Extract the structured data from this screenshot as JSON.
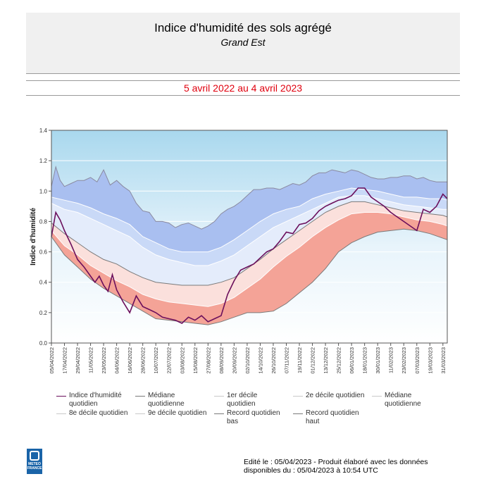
{
  "header": {
    "title": "Indice d'humidité des sols agrégé",
    "subtitle": "Grand Est"
  },
  "period": "5 avril 2022 au 4 avril 2023",
  "chart_data": {
    "type": "area",
    "ylabel": "Indice d'humidité",
    "ylim": [
      0.0,
      1.4
    ],
    "yticks": [
      "0.0",
      "0.2",
      "0.4",
      "0.6",
      "0.8",
      "1.0",
      "1.2",
      "1.4"
    ],
    "x_ticks": [
      "05/04/2022",
      "17/04/2022",
      "29/04/2022",
      "11/05/2022",
      "23/05/2022",
      "04/06/2022",
      "16/06/2022",
      "28/06/2022",
      "10/07/2022",
      "22/07/2022",
      "03/08/2022",
      "15/08/2022",
      "27/08/2022",
      "08/09/2022",
      "20/09/2022",
      "02/10/2022",
      "14/10/2022",
      "26/10/2022",
      "07/11/2022",
      "19/11/2022",
      "01/12/2022",
      "13/12/2022",
      "25/12/2022",
      "06/01/2023",
      "18/01/2023",
      "30/01/2023",
      "11/02/2023",
      "23/02/2023",
      "07/03/2023",
      "19/03/2023",
      "31/03/2023"
    ],
    "x_tick_days": [
      0,
      12,
      24,
      36,
      48,
      60,
      72,
      84,
      96,
      108,
      120,
      132,
      144,
      156,
      168,
      180,
      192,
      204,
      216,
      228,
      240,
      252,
      264,
      276,
      288,
      300,
      312,
      324,
      336,
      348,
      360
    ],
    "x_days_total": 364,
    "grid": true,
    "colors": {
      "record_high_band": "#a9bff0",
      "dec9_band": "#c9d9f7",
      "dec8_band": "#e4ecfb",
      "median_high_band": "#fbe0dc",
      "dec2_band": "#f8c6be",
      "record_low_band": "#f4a397",
      "current": "#6b0f5c",
      "stat_line": "#7a7a7a"
    },
    "series": [
      {
        "name": "Record quotidien haut",
        "x": [
          0,
          4,
          8,
          12,
          18,
          24,
          30,
          36,
          42,
          48,
          54,
          60,
          66,
          72,
          78,
          84,
          90,
          96,
          102,
          108,
          114,
          120,
          126,
          132,
          138,
          144,
          150,
          156,
          162,
          168,
          174,
          180,
          186,
          192,
          198,
          204,
          210,
          216,
          222,
          228,
          234,
          240,
          246,
          252,
          258,
          264,
          270,
          276,
          282,
          288,
          294,
          300,
          306,
          312,
          318,
          324,
          330,
          336,
          342,
          348,
          354,
          360,
          364
        ],
        "y": [
          1.03,
          1.16,
          1.07,
          1.03,
          1.05,
          1.07,
          1.07,
          1.09,
          1.06,
          1.14,
          1.04,
          1.07,
          1.03,
          1.0,
          0.92,
          0.87,
          0.86,
          0.8,
          0.8,
          0.79,
          0.76,
          0.78,
          0.79,
          0.77,
          0.75,
          0.77,
          0.8,
          0.85,
          0.88,
          0.9,
          0.93,
          0.97,
          1.01,
          1.01,
          1.02,
          1.02,
          1.01,
          1.03,
          1.05,
          1.04,
          1.06,
          1.1,
          1.12,
          1.12,
          1.14,
          1.13,
          1.12,
          1.14,
          1.13,
          1.11,
          1.09,
          1.08,
          1.08,
          1.09,
          1.09,
          1.1,
          1.1,
          1.08,
          1.09,
          1.07,
          1.06,
          1.06,
          1.06
        ]
      },
      {
        "name": "9e décile quotidien",
        "x": [
          0,
          12,
          24,
          36,
          48,
          60,
          72,
          84,
          96,
          108,
          120,
          132,
          144,
          156,
          168,
          180,
          192,
          204,
          216,
          228,
          240,
          252,
          264,
          276,
          288,
          300,
          312,
          324,
          336,
          348,
          360,
          364
        ],
        "y": [
          0.96,
          0.94,
          0.92,
          0.89,
          0.85,
          0.82,
          0.78,
          0.7,
          0.66,
          0.62,
          0.6,
          0.6,
          0.6,
          0.63,
          0.68,
          0.74,
          0.8,
          0.85,
          0.88,
          0.9,
          0.95,
          0.98,
          1.0,
          1.02,
          1.01,
          1.0,
          0.98,
          0.96,
          0.96,
          0.95,
          0.95,
          0.94
        ]
      },
      {
        "name": "8e décile quotidien",
        "x": [
          0,
          12,
          24,
          36,
          48,
          60,
          72,
          84,
          96,
          108,
          120,
          132,
          144,
          156,
          168,
          180,
          192,
          204,
          216,
          228,
          240,
          252,
          264,
          276,
          288,
          300,
          312,
          324,
          336,
          348,
          360,
          364
        ],
        "y": [
          0.92,
          0.88,
          0.86,
          0.82,
          0.78,
          0.74,
          0.7,
          0.63,
          0.58,
          0.55,
          0.53,
          0.51,
          0.51,
          0.54,
          0.58,
          0.64,
          0.7,
          0.76,
          0.8,
          0.84,
          0.88,
          0.92,
          0.96,
          0.97,
          0.97,
          0.95,
          0.93,
          0.91,
          0.9,
          0.89,
          0.88,
          0.88
        ]
      },
      {
        "name": "Médiane quotidienne",
        "x": [
          0,
          12,
          24,
          36,
          48,
          60,
          72,
          84,
          96,
          108,
          120,
          132,
          144,
          156,
          168,
          180,
          192,
          204,
          216,
          228,
          240,
          252,
          264,
          276,
          288,
          300,
          312,
          324,
          336,
          348,
          360,
          364
        ],
        "y": [
          0.79,
          0.72,
          0.66,
          0.6,
          0.55,
          0.52,
          0.47,
          0.43,
          0.4,
          0.39,
          0.38,
          0.38,
          0.38,
          0.4,
          0.43,
          0.49,
          0.55,
          0.62,
          0.68,
          0.74,
          0.8,
          0.86,
          0.9,
          0.93,
          0.93,
          0.91,
          0.89,
          0.87,
          0.86,
          0.85,
          0.84,
          0.83
        ]
      },
      {
        "name": "2e décile quotidien",
        "x": [
          0,
          12,
          24,
          36,
          48,
          60,
          72,
          84,
          96,
          108,
          120,
          132,
          144,
          156,
          168,
          180,
          192,
          204,
          216,
          228,
          240,
          252,
          264,
          276,
          288,
          300,
          312,
          324,
          336,
          348,
          360,
          364
        ],
        "y": [
          0.74,
          0.64,
          0.58,
          0.51,
          0.46,
          0.41,
          0.37,
          0.32,
          0.29,
          0.27,
          0.26,
          0.25,
          0.24,
          0.26,
          0.3,
          0.36,
          0.42,
          0.5,
          0.57,
          0.63,
          0.7,
          0.76,
          0.81,
          0.85,
          0.86,
          0.86,
          0.85,
          0.83,
          0.81,
          0.8,
          0.78,
          0.77
        ]
      },
      {
        "name": "Record quotidien bas",
        "x": [
          0,
          12,
          24,
          36,
          48,
          60,
          72,
          84,
          96,
          108,
          120,
          132,
          144,
          156,
          168,
          180,
          192,
          204,
          216,
          228,
          240,
          252,
          264,
          276,
          288,
          300,
          312,
          324,
          336,
          348,
          360,
          364
        ],
        "y": [
          0.7,
          0.58,
          0.5,
          0.42,
          0.36,
          0.31,
          0.26,
          0.21,
          0.16,
          0.15,
          0.14,
          0.13,
          0.12,
          0.14,
          0.17,
          0.2,
          0.2,
          0.21,
          0.26,
          0.33,
          0.4,
          0.49,
          0.6,
          0.66,
          0.7,
          0.73,
          0.74,
          0.75,
          0.74,
          0.72,
          0.69,
          0.68
        ]
      },
      {
        "name": "Indice d'humidité quotidien",
        "x": [
          0,
          4,
          8,
          12,
          18,
          24,
          30,
          36,
          40,
          44,
          48,
          52,
          56,
          60,
          66,
          72,
          78,
          84,
          90,
          96,
          102,
          108,
          114,
          120,
          126,
          132,
          138,
          144,
          150,
          156,
          162,
          168,
          174,
          180,
          186,
          192,
          198,
          204,
          210,
          216,
          222,
          228,
          234,
          240,
          246,
          252,
          258,
          264,
          270,
          276,
          282,
          288,
          294,
          300,
          306,
          312,
          318,
          324,
          330,
          336,
          342,
          348,
          354,
          360,
          364
        ],
        "y": [
          0.7,
          0.86,
          0.81,
          0.74,
          0.65,
          0.55,
          0.5,
          0.44,
          0.4,
          0.44,
          0.38,
          0.34,
          0.45,
          0.35,
          0.27,
          0.2,
          0.31,
          0.24,
          0.22,
          0.2,
          0.17,
          0.16,
          0.15,
          0.13,
          0.17,
          0.15,
          0.18,
          0.14,
          0.16,
          0.18,
          0.32,
          0.41,
          0.48,
          0.5,
          0.52,
          0.56,
          0.6,
          0.62,
          0.67,
          0.73,
          0.72,
          0.78,
          0.79,
          0.82,
          0.87,
          0.9,
          0.92,
          0.94,
          0.95,
          0.97,
          1.02,
          1.02,
          0.96,
          0.93,
          0.9,
          0.86,
          0.83,
          0.8,
          0.77,
          0.74,
          0.88,
          0.86,
          0.9,
          0.98,
          0.95
        ]
      }
    ],
    "legend_position": "bottom"
  },
  "legend": [
    {
      "label": "Indice d'humidité quotidien",
      "color": "#6b0f5c"
    },
    {
      "label": "Médiane quotidienne",
      "color": "#7a7a7a"
    },
    {
      "label": "1er décile quotidien",
      "color": "#c8c8c8"
    },
    {
      "label": "2e décile quotidien",
      "color": "#c8c8c8"
    },
    {
      "label": "Médiane quotidienne",
      "color": "#c8c8c8"
    },
    {
      "label": "8e décile quotidien",
      "color": "#c8c8c8"
    },
    {
      "label": "9e décile quotidien",
      "color": "#c8c8c8"
    },
    {
      "label": "Record quotidien bas",
      "color": "#7a7a7a"
    },
    {
      "label": "Record quotidien haut",
      "color": "#7a7a7a"
    }
  ],
  "logo": {
    "text_line1": "METEO",
    "text_line2": "FRANCE"
  },
  "footer": {
    "line1": "Edité le : 05/04/2023 - Produit élaboré avec les données",
    "line2": "disponibles du : 05/04/2023 à 10:54 UTC"
  }
}
